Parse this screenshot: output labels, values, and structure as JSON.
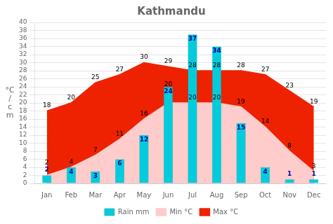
{
  "chart_data": {
    "type": "bar",
    "title": "Kathmandu",
    "categories": [
      "Jan",
      "Feb",
      "Mar",
      "Apr",
      "May",
      "Jun",
      "Jul",
      "Aug",
      "Sep",
      "Oct",
      "Nov",
      "Dec"
    ],
    "series": [
      {
        "name": "Max °C",
        "type": "area",
        "color": "#EE2200",
        "values": [
          18,
          20,
          25,
          27,
          30,
          29,
          28,
          28,
          28,
          27,
          23,
          19
        ]
      },
      {
        "name": "Min °C",
        "type": "area",
        "color": "#FFCCCC",
        "values": [
          2,
          4,
          7,
          11,
          16,
          20,
          20,
          20,
          19,
          14,
          8,
          3
        ]
      },
      {
        "name": "Rain mm",
        "type": "bar",
        "color": "#00CCDD",
        "values": [
          2,
          4,
          3,
          6,
          12,
          24,
          37,
          34,
          15,
          4,
          1,
          1
        ]
      }
    ],
    "ylabel": "°C\n/\nc\nm",
    "ylim": [
      0,
      40
    ],
    "yticks": [
      0,
      2,
      4,
      6,
      8,
      10,
      12,
      14,
      16,
      18,
      20,
      22,
      24,
      26,
      28,
      30,
      32,
      34,
      36,
      38,
      40
    ],
    "grid": true,
    "legend": "bottom",
    "data_labels": true
  }
}
